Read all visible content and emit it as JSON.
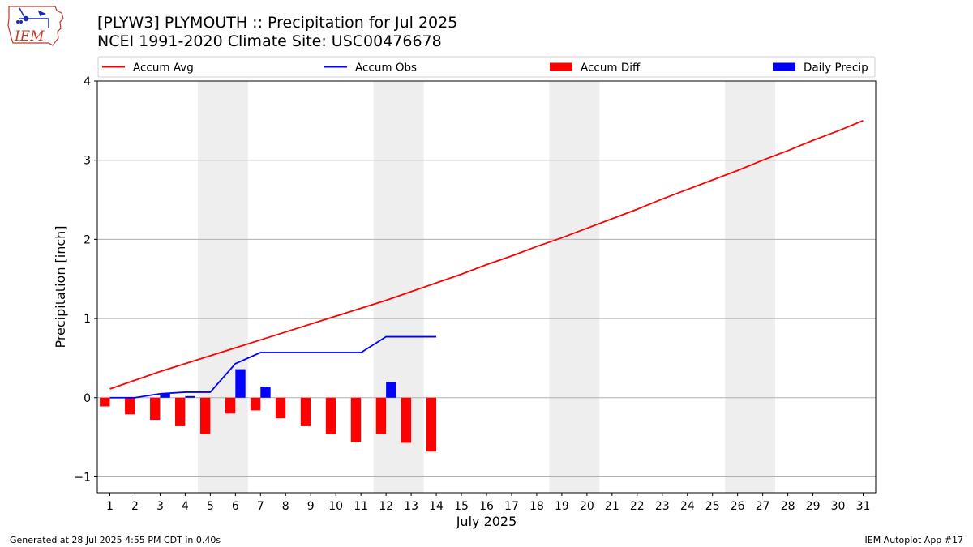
{
  "logo": {
    "text": "IEM",
    "colors": {
      "outline": "#c0392b",
      "text": "#c0392b",
      "symbol": "#1a2bb8"
    }
  },
  "header": {
    "title": "[PLYW3] PLYMOUTH :: Precipitation for Jul 2025",
    "subtitle": "NCEI 1991-2020 Climate Site: USC00476678"
  },
  "footer": {
    "left": "Generated at 28 Jul 2025 4:55 PM CDT in 0.40s",
    "right": "IEM Autoplot App #17"
  },
  "chart_data": {
    "type": "bar",
    "xlabel": "July 2025",
    "ylabel": "Precipitation [inch]",
    "xlim": [
      0.5,
      31.5
    ],
    "ylim": [
      -1.2,
      4
    ],
    "yticks": [
      -1,
      0,
      1,
      2,
      3,
      4
    ],
    "xticks": [
      1,
      2,
      3,
      4,
      5,
      6,
      7,
      8,
      9,
      10,
      11,
      12,
      13,
      14,
      15,
      16,
      17,
      18,
      19,
      20,
      21,
      22,
      23,
      24,
      25,
      26,
      27,
      28,
      29,
      30,
      31
    ],
    "grid": "horizontal",
    "legend_position": "top",
    "weekend_shading": [
      [
        4.5,
        6.5
      ],
      [
        11.5,
        13.5
      ],
      [
        18.5,
        20.5
      ],
      [
        25.5,
        27.5
      ]
    ],
    "shading_color": "#eeeeee",
    "series": [
      {
        "name": "Accum Avg",
        "kind": "line",
        "color": "#ff0000",
        "x": [
          1,
          2,
          3,
          4,
          5,
          6,
          7,
          8,
          9,
          10,
          11,
          12,
          13,
          14,
          15,
          16,
          17,
          18,
          19,
          20,
          21,
          22,
          23,
          24,
          25,
          26,
          27,
          28,
          29,
          30,
          31
        ],
        "values": [
          0.11,
          0.22,
          0.33,
          0.43,
          0.53,
          0.63,
          0.73,
          0.83,
          0.93,
          1.03,
          1.13,
          1.23,
          1.34,
          1.45,
          1.56,
          1.68,
          1.79,
          1.91,
          2.02,
          2.14,
          2.26,
          2.38,
          2.51,
          2.63,
          2.75,
          2.87,
          3.0,
          3.12,
          3.25,
          3.37,
          3.5
        ]
      },
      {
        "name": "Accum Obs",
        "kind": "line",
        "color": "#0000ff",
        "x": [
          1,
          2,
          3,
          4,
          5,
          6,
          7,
          8,
          9,
          10,
          11,
          12,
          13,
          14
        ],
        "values": [
          0.0,
          0.0,
          0.05,
          0.07,
          0.07,
          0.43,
          0.57,
          0.57,
          0.57,
          0.57,
          0.57,
          0.77,
          0.77,
          0.77
        ]
      },
      {
        "name": "Accum Diff",
        "kind": "bar",
        "color": "#ff0000",
        "offset": -0.2,
        "x": [
          1,
          2,
          3,
          4,
          5,
          6,
          7,
          8,
          9,
          10,
          11,
          12,
          13,
          14
        ],
        "values": [
          -0.11,
          -0.21,
          -0.28,
          -0.36,
          -0.46,
          -0.2,
          -0.16,
          -0.26,
          -0.36,
          -0.46,
          -0.56,
          -0.46,
          -0.57,
          -0.68
        ]
      },
      {
        "name": "Daily Precip",
        "kind": "bar",
        "color": "#0000ff",
        "offset": 0.2,
        "x": [
          1,
          2,
          3,
          4,
          5,
          6,
          7,
          8,
          9,
          10,
          11,
          12,
          13,
          14
        ],
        "values": [
          0.0,
          0.0,
          0.05,
          0.02,
          0.0,
          0.36,
          0.14,
          0.0,
          0.0,
          0.0,
          0.0,
          0.2,
          0.0,
          0.0
        ]
      }
    ]
  }
}
